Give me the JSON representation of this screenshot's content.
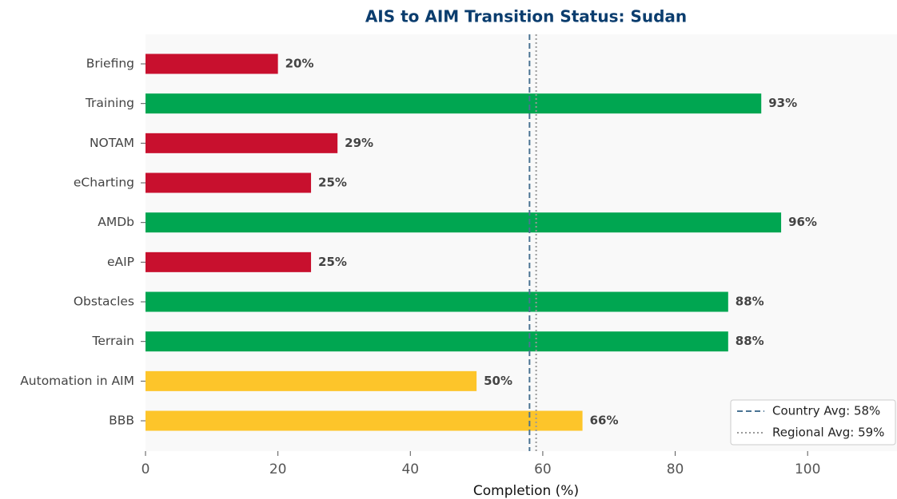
{
  "chart_data": {
    "type": "hbar",
    "title": "AIS to AIM Transition Status: Sudan",
    "xlabel": "Completion (%)",
    "categories": [
      "Briefing",
      "Training",
      "NOTAM",
      "eCharting",
      "AMDb",
      "eAIP",
      "Obstacles",
      "Terrain",
      "Automation in AIM",
      "BBB"
    ],
    "values": [
      20,
      93,
      29,
      25,
      96,
      25,
      88,
      88,
      50,
      66
    ],
    "value_labels": [
      "20%",
      "93%",
      "29%",
      "25%",
      "96%",
      "25%",
      "88%",
      "88%",
      "50%",
      "66%"
    ],
    "colors": [
      "#c8102e",
      "#00a651",
      "#c8102e",
      "#c8102e",
      "#00a651",
      "#c8102e",
      "#00a651",
      "#00a651",
      "#fdc52a",
      "#fdc52a"
    ],
    "xlim": [
      0,
      113.5
    ],
    "xticks": [
      0,
      20,
      40,
      60,
      80,
      100
    ],
    "reference_lines": [
      {
        "name": "Country Avg: 58%",
        "value": 58,
        "color": "#4a7393",
        "style": "dashed"
      },
      {
        "name": "Regional Avg: 59%",
        "value": 59,
        "color": "#999999",
        "style": "dotted"
      }
    ],
    "legend": "lower right"
  }
}
